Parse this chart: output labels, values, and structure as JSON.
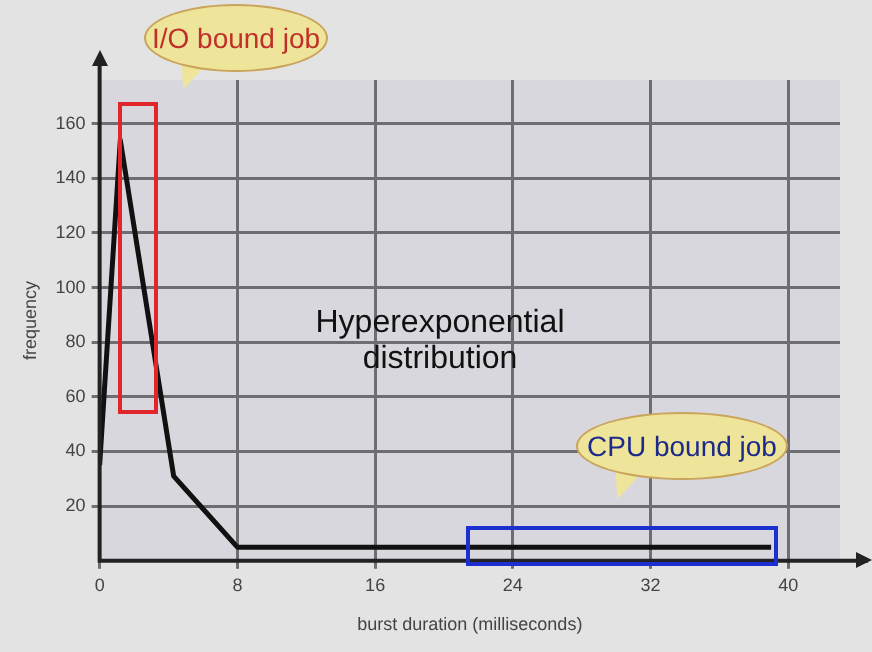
{
  "chart_data": {
    "type": "line",
    "xlabel": "burst duration (milliseconds)",
    "ylabel": "frequency",
    "x": [
      0,
      1.2,
      4.3,
      8,
      39
    ],
    "series": [
      {
        "color": "#111111",
        "values": [
          35,
          154,
          31,
          5,
          5
        ]
      }
    ],
    "xlim": [
      0,
      43
    ],
    "xticks": [
      0,
      8,
      16,
      24,
      32,
      40
    ],
    "ylim": [
      0,
      176
    ],
    "yticks": [
      20,
      40,
      60,
      80,
      100,
      120,
      140,
      160
    ],
    "grid": true,
    "legend": false,
    "marker": "none",
    "line_style": "solid",
    "annotations": [
      "I/O bound job",
      "Hyperexponential distribution",
      "CPU bound job"
    ]
  }
}
